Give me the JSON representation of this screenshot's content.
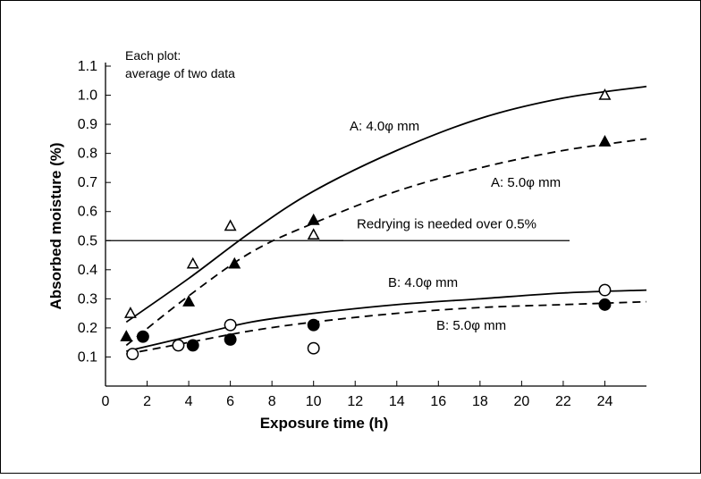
{
  "chart_data": {
    "type": "scatter",
    "xlabel": "Exposure time (h)",
    "ylabel": "Absorbed moisture (%)",
    "xlim": [
      0,
      26
    ],
    "ylim": [
      0,
      1.1
    ],
    "x_ticks": [
      0,
      2,
      4,
      6,
      8,
      10,
      12,
      14,
      16,
      18,
      20,
      22,
      24
    ],
    "y_ticks": [
      0.1,
      0.2,
      0.3,
      0.4,
      0.5,
      0.6,
      0.7,
      0.8,
      0.9,
      1.0,
      1.1
    ],
    "note_lines": [
      "Each plot:",
      "average of two data"
    ],
    "threshold": {
      "y": 0.5,
      "label": "Redrying is needed over 0.5%"
    },
    "series": [
      {
        "name": "A: 4.0φ mm",
        "marker": "open-triangle",
        "line_style": "solid",
        "points": [
          [
            1.2,
            0.25
          ],
          [
            4.2,
            0.42
          ],
          [
            6.0,
            0.55
          ],
          [
            10.0,
            0.52
          ],
          [
            24.0,
            1.0
          ]
        ],
        "curve": [
          [
            1.0,
            0.22
          ],
          [
            4.0,
            0.37
          ],
          [
            7.0,
            0.53
          ],
          [
            10.0,
            0.67
          ],
          [
            14.0,
            0.81
          ],
          [
            18.0,
            0.92
          ],
          [
            22.0,
            0.99
          ],
          [
            26.0,
            1.03
          ]
        ]
      },
      {
        "name": "A: 5.0φ mm",
        "marker": "filled-triangle",
        "line_style": "dashed",
        "points": [
          [
            1.0,
            0.17
          ],
          [
            4.0,
            0.29
          ],
          [
            6.2,
            0.42
          ],
          [
            10.0,
            0.57
          ],
          [
            24.0,
            0.84
          ]
        ],
        "curve": [
          [
            1.0,
            0.14
          ],
          [
            4.0,
            0.31
          ],
          [
            7.0,
            0.46
          ],
          [
            10.0,
            0.56
          ],
          [
            14.0,
            0.67
          ],
          [
            18.0,
            0.75
          ],
          [
            22.0,
            0.81
          ],
          [
            26.0,
            0.85
          ]
        ]
      },
      {
        "name": "B: 4.0φ mm",
        "marker": "open-circle",
        "line_style": "solid",
        "points": [
          [
            1.3,
            0.11
          ],
          [
            3.5,
            0.14
          ],
          [
            6.0,
            0.21
          ],
          [
            10.0,
            0.13
          ],
          [
            24.0,
            0.33
          ]
        ],
        "curve": [
          [
            1.0,
            0.12
          ],
          [
            4.0,
            0.17
          ],
          [
            7.0,
            0.22
          ],
          [
            10.0,
            0.25
          ],
          [
            14.0,
            0.28
          ],
          [
            18.0,
            0.3
          ],
          [
            22.0,
            0.32
          ],
          [
            26.0,
            0.33
          ]
        ]
      },
      {
        "name": "B: 5.0φ mm",
        "marker": "filled-circle",
        "line_style": "dashed",
        "points": [
          [
            1.8,
            0.17
          ],
          [
            4.2,
            0.14
          ],
          [
            6.0,
            0.16
          ],
          [
            10.0,
            0.21
          ],
          [
            24.0,
            0.28
          ]
        ],
        "curve": [
          [
            1.0,
            0.11
          ],
          [
            4.0,
            0.15
          ],
          [
            7.0,
            0.19
          ],
          [
            10.0,
            0.22
          ],
          [
            14.0,
            0.25
          ],
          [
            18.0,
            0.27
          ],
          [
            22.0,
            0.28
          ],
          [
            26.0,
            0.29
          ]
        ]
      }
    ]
  }
}
